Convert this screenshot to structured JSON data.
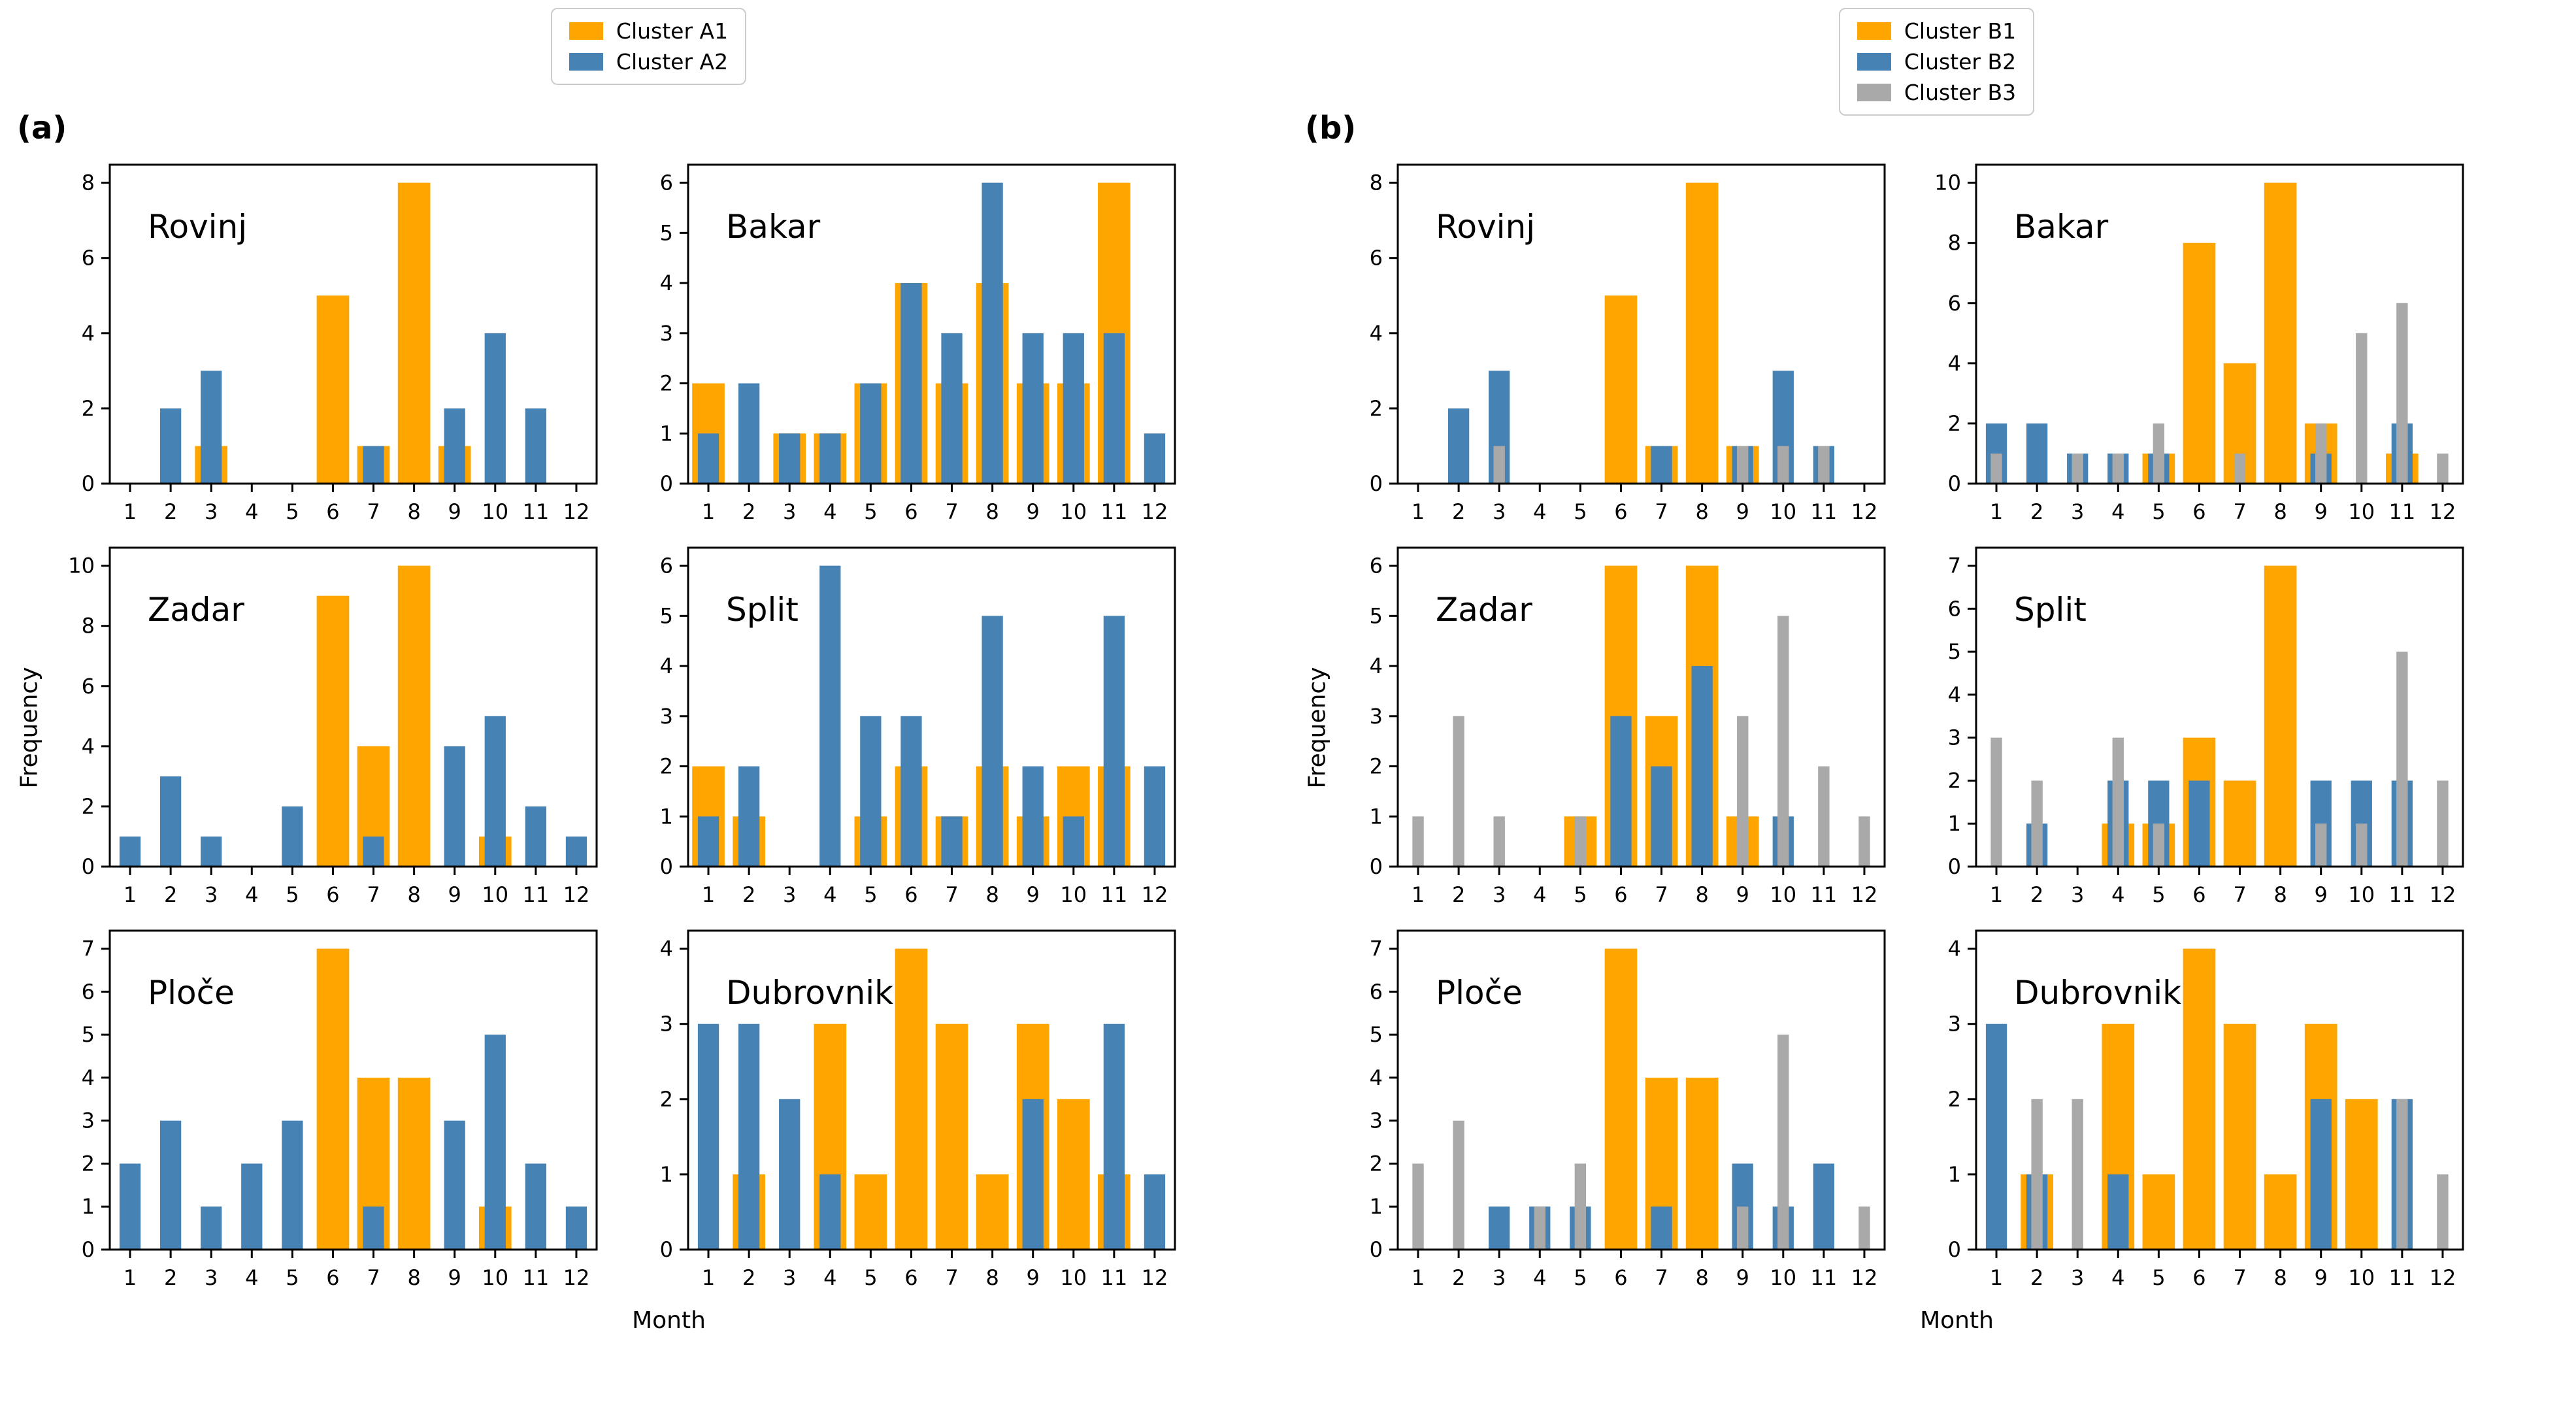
{
  "figure": {
    "background": "#ffffff",
    "axis_color": "#000000",
    "legend_border_color": "#cccccc"
  },
  "chart_data": {
    "type": "bar",
    "bar_mode": "overlay",
    "x": [
      1,
      2,
      3,
      4,
      5,
      6,
      7,
      8,
      9,
      10,
      11,
      12
    ],
    "grid_layout": "2 panels, each 3 rows x 2 cols of subplots",
    "legend_position": "top-center",
    "panels": [
      {
        "label": "(a)",
        "xlabel": "Month",
        "ylabel": "Frequency",
        "legend": [
          {
            "label": "Cluster A1",
            "color": "#FFA500"
          },
          {
            "label": "Cluster A2",
            "color": "#4682B4"
          }
        ],
        "subplots": [
          {
            "city": "Rovinj",
            "ymax": 8,
            "yticks": [
              0,
              2,
              4,
              6,
              8
            ],
            "series": [
              {
                "name": "Cluster A1",
                "values": [
                  0,
                  0,
                  1,
                  0,
                  0,
                  5,
                  1,
                  8,
                  1,
                  0,
                  0,
                  0
                ]
              },
              {
                "name": "Cluster A2",
                "values": [
                  0,
                  2,
                  3,
                  0,
                  0,
                  0,
                  1,
                  0,
                  2,
                  4,
                  2,
                  0
                ]
              }
            ]
          },
          {
            "city": "Bakar",
            "ymax": 6,
            "yticks": [
              0,
              1,
              2,
              3,
              4,
              5,
              6
            ],
            "series": [
              {
                "name": "Cluster A1",
                "values": [
                  2,
                  0,
                  1,
                  1,
                  2,
                  4,
                  2,
                  4,
                  2,
                  2,
                  6,
                  0
                ]
              },
              {
                "name": "Cluster A2",
                "values": [
                  1,
                  2,
                  1,
                  1,
                  2,
                  4,
                  3,
                  6,
                  3,
                  3,
                  3,
                  1
                ]
              }
            ]
          },
          {
            "city": "Zadar",
            "ymax": 10,
            "yticks": [
              0,
              2,
              4,
              6,
              8,
              10
            ],
            "series": [
              {
                "name": "Cluster A1",
                "values": [
                  0,
                  0,
                  0,
                  0,
                  0,
                  9,
                  4,
                  10,
                  0,
                  1,
                  0,
                  0
                ]
              },
              {
                "name": "Cluster A2",
                "values": [
                  1,
                  3,
                  1,
                  0,
                  2,
                  0,
                  1,
                  0,
                  4,
                  5,
                  2,
                  1
                ]
              }
            ]
          },
          {
            "city": "Split",
            "ymax": 6,
            "yticks": [
              0,
              1,
              2,
              3,
              4,
              5,
              6
            ],
            "series": [
              {
                "name": "Cluster A1",
                "values": [
                  2,
                  1,
                  0,
                  0,
                  1,
                  2,
                  1,
                  2,
                  1,
                  2,
                  2,
                  0
                ]
              },
              {
                "name": "Cluster A2",
                "values": [
                  1,
                  2,
                  0,
                  6,
                  3,
                  3,
                  1,
                  5,
                  2,
                  1,
                  5,
                  2
                ]
              }
            ]
          },
          {
            "city": "Ploče",
            "ymax": 7,
            "yticks": [
              0,
              1,
              2,
              3,
              4,
              5,
              6,
              7
            ],
            "series": [
              {
                "name": "Cluster A1",
                "values": [
                  0,
                  0,
                  0,
                  0,
                  0,
                  7,
                  4,
                  4,
                  0,
                  1,
                  0,
                  0
                ]
              },
              {
                "name": "Cluster A2",
                "values": [
                  2,
                  3,
                  1,
                  2,
                  3,
                  0,
                  1,
                  0,
                  3,
                  5,
                  2,
                  1
                ]
              }
            ]
          },
          {
            "city": "Dubrovnik",
            "ymax": 4,
            "yticks": [
              0,
              1,
              2,
              3,
              4
            ],
            "series": [
              {
                "name": "Cluster A1",
                "values": [
                  0,
                  1,
                  0,
                  3,
                  1,
                  4,
                  3,
                  1,
                  3,
                  2,
                  1,
                  0
                ]
              },
              {
                "name": "Cluster A2",
                "values": [
                  3,
                  3,
                  2,
                  1,
                  0,
                  0,
                  0,
                  0,
                  2,
                  0,
                  3,
                  1
                ]
              }
            ]
          }
        ]
      },
      {
        "label": "(b)",
        "xlabel": "Month",
        "ylabel": "Frequency",
        "legend": [
          {
            "label": "Cluster B1",
            "color": "#FFA500"
          },
          {
            "label": "Cluster B2",
            "color": "#4682B4"
          },
          {
            "label": "Cluster B3",
            "color": "#A9A9A9"
          }
        ],
        "subplots": [
          {
            "city": "Rovinj",
            "ymax": 8,
            "yticks": [
              0,
              2,
              4,
              6,
              8
            ],
            "series": [
              {
                "name": "Cluster B1",
                "values": [
                  0,
                  0,
                  0,
                  0,
                  0,
                  5,
                  1,
                  8,
                  1,
                  0,
                  0,
                  0
                ]
              },
              {
                "name": "Cluster B2",
                "values": [
                  0,
                  2,
                  3,
                  0,
                  0,
                  0,
                  1,
                  0,
                  1,
                  3,
                  1,
                  0
                ]
              },
              {
                "name": "Cluster B3",
                "values": [
                  0,
                  0,
                  1,
                  0,
                  0,
                  0,
                  0,
                  0,
                  1,
                  1,
                  1,
                  0
                ]
              }
            ]
          },
          {
            "city": "Bakar",
            "ymax": 10,
            "yticks": [
              0,
              2,
              4,
              6,
              8,
              10
            ],
            "series": [
              {
                "name": "Cluster B1",
                "values": [
                  0,
                  0,
                  0,
                  0,
                  1,
                  8,
                  4,
                  10,
                  2,
                  0,
                  1,
                  0
                ]
              },
              {
                "name": "Cluster B2",
                "values": [
                  2,
                  2,
                  1,
                  1,
                  1,
                  0,
                  0,
                  0,
                  1,
                  0,
                  2,
                  0
                ]
              },
              {
                "name": "Cluster B3",
                "values": [
                  1,
                  0,
                  1,
                  1,
                  2,
                  0,
                  1,
                  0,
                  2,
                  5,
                  6,
                  1
                ]
              }
            ]
          },
          {
            "city": "Zadar",
            "ymax": 6,
            "yticks": [
              0,
              1,
              2,
              3,
              4,
              5,
              6
            ],
            "series": [
              {
                "name": "Cluster B1",
                "values": [
                  0,
                  0,
                  0,
                  0,
                  1,
                  6,
                  3,
                  6,
                  1,
                  0,
                  0,
                  0
                ]
              },
              {
                "name": "Cluster B2",
                "values": [
                  0,
                  0,
                  0,
                  0,
                  0,
                  3,
                  2,
                  4,
                  0,
                  1,
                  0,
                  0
                ]
              },
              {
                "name": "Cluster B3",
                "values": [
                  1,
                  3,
                  1,
                  0,
                  1,
                  0,
                  0,
                  0,
                  3,
                  5,
                  2,
                  1
                ]
              }
            ]
          },
          {
            "city": "Split",
            "ymax": 7,
            "yticks": [
              0,
              1,
              2,
              3,
              4,
              5,
              6,
              7
            ],
            "series": [
              {
                "name": "Cluster B1",
                "values": [
                  0,
                  0,
                  0,
                  1,
                  1,
                  3,
                  2,
                  7,
                  0,
                  0,
                  0,
                  0
                ]
              },
              {
                "name": "Cluster B2",
                "values": [
                  0,
                  1,
                  0,
                  2,
                  2,
                  2,
                  0,
                  0,
                  2,
                  2,
                  2,
                  0
                ]
              },
              {
                "name": "Cluster B3",
                "values": [
                  3,
                  2,
                  0,
                  3,
                  1,
                  0,
                  0,
                  0,
                  1,
                  1,
                  5,
                  2
                ]
              }
            ]
          },
          {
            "city": "Ploče",
            "ymax": 7,
            "yticks": [
              0,
              1,
              2,
              3,
              4,
              5,
              6,
              7
            ],
            "series": [
              {
                "name": "Cluster B1",
                "values": [
                  0,
                  0,
                  0,
                  0,
                  0,
                  7,
                  4,
                  4,
                  0,
                  0,
                  0,
                  0
                ]
              },
              {
                "name": "Cluster B2",
                "values": [
                  0,
                  0,
                  1,
                  1,
                  1,
                  0,
                  1,
                  0,
                  2,
                  1,
                  2,
                  0
                ]
              },
              {
                "name": "Cluster B3",
                "values": [
                  2,
                  3,
                  0,
                  1,
                  2,
                  0,
                  0,
                  0,
                  1,
                  5,
                  0,
                  1
                ]
              }
            ]
          },
          {
            "city": "Dubrovnik",
            "ymax": 4,
            "yticks": [
              0,
              1,
              2,
              3,
              4
            ],
            "series": [
              {
                "name": "Cluster B1",
                "values": [
                  0,
                  1,
                  0,
                  3,
                  1,
                  4,
                  3,
                  1,
                  3,
                  2,
                  0,
                  0
                ]
              },
              {
                "name": "Cluster B2",
                "values": [
                  3,
                  1,
                  0,
                  1,
                  0,
                  0,
                  0,
                  0,
                  2,
                  0,
                  2,
                  0
                ]
              },
              {
                "name": "Cluster B3",
                "values": [
                  0,
                  2,
                  2,
                  0,
                  0,
                  0,
                  0,
                  0,
                  0,
                  0,
                  2,
                  1
                ]
              }
            ]
          }
        ]
      }
    ]
  }
}
